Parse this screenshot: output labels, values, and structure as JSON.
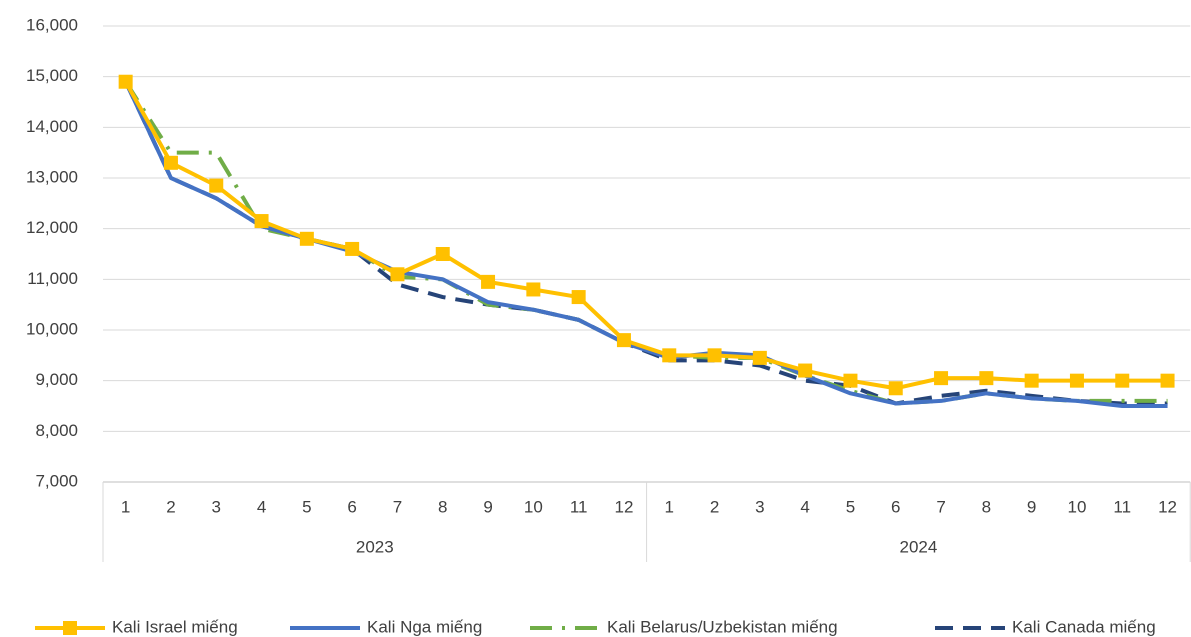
{
  "chart_data": {
    "type": "line",
    "categories": [
      "1",
      "2",
      "3",
      "4",
      "5",
      "6",
      "7",
      "8",
      "9",
      "10",
      "11",
      "12",
      "1",
      "2",
      "3",
      "4",
      "5",
      "6",
      "7",
      "8",
      "9",
      "10",
      "11",
      "12"
    ],
    "category_groups": [
      "2023",
      "2024"
    ],
    "ylim": [
      7000,
      16000
    ],
    "yticks": [
      {
        "value": 7000,
        "label": "7,000"
      },
      {
        "value": 8000,
        "label": "8,000"
      },
      {
        "value": 9000,
        "label": "9,000"
      },
      {
        "value": 10000,
        "label": "10,000"
      },
      {
        "value": 11000,
        "label": "11,000"
      },
      {
        "value": 12000,
        "label": "12,000"
      },
      {
        "value": 13000,
        "label": "13,000"
      },
      {
        "value": 14000,
        "label": "14,000"
      },
      {
        "value": 15000,
        "label": "15,000"
      },
      {
        "value": 16000,
        "label": "16,000"
      }
    ],
    "grid": true,
    "legend": "bottom",
    "series": [
      {
        "name": "Kali Israel miếng",
        "color": "#ffc000",
        "style": "solid",
        "marker": "square",
        "values": [
          14900,
          13300,
          12850,
          12150,
          11800,
          11600,
          11100,
          11500,
          10950,
          10800,
          10650,
          9800,
          9500,
          9500,
          9450,
          9200,
          9000,
          8850,
          9050,
          9050,
          9000,
          9000,
          9000,
          9000
        ]
      },
      {
        "name": "Kali Nga miếng",
        "color": "#4472c4",
        "style": "solid",
        "values": [
          14900,
          13000,
          12600,
          12050,
          11800,
          11550,
          11150,
          11000,
          10550,
          10400,
          10200,
          9750,
          9450,
          9550,
          9500,
          9100,
          8750,
          8550,
          8600,
          8750,
          8650,
          8600,
          8500,
          8500
        ]
      },
      {
        "name": "Kali Belarus/Uzbekistan miếng",
        "color": "#70ad47",
        "style": "dashdot",
        "values": [
          14900,
          13500,
          13500,
          12000,
          11800,
          11600,
          11050,
          11000,
          10500,
          10400,
          10200,
          9750,
          9500,
          9450,
          9450,
          9100,
          8800,
          8550,
          8600,
          8750,
          8650,
          8600,
          8600,
          8600
        ]
      },
      {
        "name": "Kali Canada miếng",
        "color": "#264478",
        "style": "dashed",
        "values": [
          14900,
          13000,
          12600,
          12050,
          11800,
          11600,
          10900,
          10650,
          10500,
          10400,
          10200,
          9750,
          9400,
          9400,
          9300,
          9000,
          8900,
          8550,
          8700,
          8800,
          8700,
          8600,
          8550,
          8550
        ]
      }
    ]
  }
}
